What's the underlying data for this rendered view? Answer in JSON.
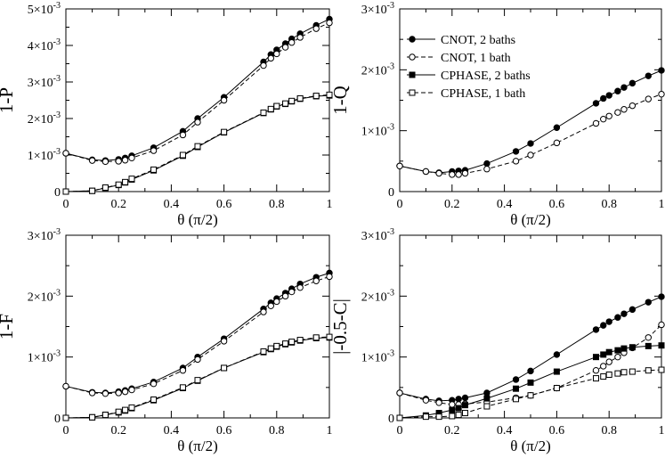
{
  "chart_data": [
    {
      "id": "P",
      "type": "line",
      "ylabel": "1-P",
      "xlabel": "θ (π/2)",
      "xlim": [
        0,
        1
      ],
      "ylim": [
        0,
        0.005
      ],
      "xticks": [
        "0",
        "0.2",
        "0.4",
        "0.6",
        "0.8",
        "1"
      ],
      "yticks": [
        {
          "mant": "0",
          "exp": ""
        },
        {
          "mant": "1×10",
          "exp": "-3"
        },
        {
          "mant": "2×10",
          "exp": "-3"
        },
        {
          "mant": "3×10",
          "exp": "-3"
        },
        {
          "mant": "4×10",
          "exp": "-3"
        },
        {
          "mant": "5×10",
          "exp": "-3"
        }
      ],
      "x": [
        0,
        0.1,
        0.15,
        0.2,
        0.225,
        0.25,
        0.333,
        0.444,
        0.5,
        0.6,
        0.75,
        0.778,
        0.8,
        0.833,
        0.857,
        0.889,
        0.95,
        1
      ],
      "series": [
        {
          "name": "CNOT, 2 baths",
          "values": [
            0.00105,
            0.00087,
            0.00085,
            0.00088,
            0.00092,
            0.00098,
            0.0012,
            0.00165,
            0.002,
            0.00258,
            0.00355,
            0.00375,
            0.00388,
            0.00405,
            0.00418,
            0.00432,
            0.00455,
            0.00472
          ]
        },
        {
          "name": "CNOT, 1 bath",
          "values": [
            0.00105,
            0.00085,
            0.00082,
            0.00083,
            0.00086,
            0.00092,
            0.00112,
            0.00155,
            0.0019,
            0.0025,
            0.00345,
            0.00365,
            0.00377,
            0.00395,
            0.00408,
            0.00422,
            0.00446,
            0.00462
          ]
        },
        {
          "name": "CPHASE, 2 baths",
          "values": [
            0,
            2e-05,
            0.0001,
            0.00018,
            0.00025,
            0.00033,
            0.00058,
            0.00098,
            0.00122,
            0.00162,
            0.00215,
            0.00225,
            0.00233,
            0.0024,
            0.00247,
            0.00254,
            0.00261,
            0.00263
          ]
        },
        {
          "name": "CPHASE, 1 bath",
          "values": [
            0,
            2e-05,
            0.00011,
            0.00019,
            0.00026,
            0.00035,
            0.0006,
            0.001,
            0.00124,
            0.00163,
            0.00216,
            0.00226,
            0.00234,
            0.00241,
            0.00248,
            0.00255,
            0.00262,
            0.00265
          ]
        }
      ]
    },
    {
      "id": "Q",
      "type": "line",
      "ylabel": "1-Q",
      "xlabel": "θ (π/2)",
      "xlim": [
        0,
        1
      ],
      "ylim": [
        0,
        0.003
      ],
      "xticks": [
        "0",
        "0.2",
        "0.4",
        "0.6",
        "0.8",
        "1"
      ],
      "yticks": [
        {
          "mant": "0",
          "exp": ""
        },
        {
          "mant": "1×10",
          "exp": "-3"
        },
        {
          "mant": "2×10",
          "exp": "-3"
        },
        {
          "mant": "3×10",
          "exp": "-3"
        }
      ],
      "x": [
        0,
        0.1,
        0.15,
        0.2,
        0.225,
        0.25,
        0.333,
        0.444,
        0.5,
        0.6,
        0.75,
        0.778,
        0.8,
        0.833,
        0.857,
        0.889,
        0.95,
        1
      ],
      "legend": {
        "placement": "top-right",
        "entries": [
          "CNOT, 2 baths",
          "CNOT, 1 bath",
          "CPHASE, 2 baths",
          "CPHASE, 1 bath"
        ]
      },
      "series": [
        {
          "name": "CNOT, 2 baths",
          "values": [
            0.00042,
            0.00033,
            0.00031,
            0.00033,
            0.00034,
            0.00035,
            0.00046,
            0.00066,
            0.00079,
            0.00105,
            0.00145,
            0.00153,
            0.00158,
            0.00165,
            0.00171,
            0.00178,
            0.0019,
            0.00199
          ]
        },
        {
          "name": "CNOT, 1 bath",
          "values": [
            0.00042,
            0.00033,
            0.0003,
            0.00028,
            0.00028,
            0.0003,
            0.00037,
            0.0005,
            0.0006,
            0.0008,
            0.00112,
            0.00119,
            0.00124,
            0.0013,
            0.00135,
            0.00141,
            0.00152,
            0.0016
          ]
        }
      ]
    },
    {
      "id": "F",
      "type": "line",
      "ylabel": "1-F",
      "xlabel": "θ (π/2)",
      "xlim": [
        0,
        1
      ],
      "ylim": [
        0,
        0.003
      ],
      "xticks": [
        "0",
        "0.2",
        "0.4",
        "0.6",
        "0.8",
        "1"
      ],
      "yticks": [
        {
          "mant": "0",
          "exp": ""
        },
        {
          "mant": "1×10",
          "exp": "-3"
        },
        {
          "mant": "2×10",
          "exp": "-3"
        },
        {
          "mant": "3×10",
          "exp": "-3"
        }
      ],
      "x": [
        0,
        0.1,
        0.15,
        0.2,
        0.225,
        0.25,
        0.333,
        0.444,
        0.5,
        0.6,
        0.75,
        0.778,
        0.8,
        0.833,
        0.857,
        0.889,
        0.95,
        1
      ],
      "series": [
        {
          "name": "CNOT, 2 baths",
          "values": [
            0.00052,
            0.00042,
            0.00041,
            0.00043,
            0.00045,
            0.00048,
            0.00059,
            0.00082,
            0.001,
            0.0013,
            0.00179,
            0.00189,
            0.00196,
            0.00205,
            0.00212,
            0.0022,
            0.00231,
            0.00238
          ]
        },
        {
          "name": "CNOT, 1 bath",
          "values": [
            0.00052,
            0.00041,
            0.0004,
            0.00041,
            0.00043,
            0.00046,
            0.00056,
            0.00078,
            0.00096,
            0.00126,
            0.00174,
            0.00184,
            0.00191,
            0.002,
            0.00207,
            0.00214,
            0.00225,
            0.00232
          ]
        },
        {
          "name": "CPHASE, 2 baths",
          "values": [
            0,
            1e-05,
            5e-05,
            9e-05,
            0.00012,
            0.00016,
            0.00029,
            0.00049,
            0.00061,
            0.00082,
            0.00108,
            0.00113,
            0.00117,
            0.00121,
            0.00124,
            0.00127,
            0.00131,
            0.00132
          ]
        },
        {
          "name": "CPHASE, 1 bath",
          "values": [
            0,
            1e-05,
            5e-05,
            0.0001,
            0.00013,
            0.00017,
            0.0003,
            0.0005,
            0.00062,
            0.00082,
            0.00109,
            0.00114,
            0.00118,
            0.00122,
            0.00125,
            0.00128,
            0.00132,
            0.00133
          ]
        }
      ]
    },
    {
      "id": "C",
      "type": "line",
      "ylabel": "|-0.5-C|",
      "xlabel": "θ (π/2)",
      "xlim": [
        0,
        1
      ],
      "ylim": [
        0,
        0.003
      ],
      "xticks": [
        "0",
        "0.2",
        "0.4",
        "0.6",
        "0.8",
        "1"
      ],
      "yticks": [
        {
          "mant": "0",
          "exp": ""
        },
        {
          "mant": "1×10",
          "exp": "-3"
        },
        {
          "mant": "2×10",
          "exp": "-3"
        },
        {
          "mant": "3×10",
          "exp": "-3"
        }
      ],
      "x": [
        0,
        0.1,
        0.15,
        0.2,
        0.225,
        0.25,
        0.333,
        0.444,
        0.5,
        0.6,
        0.75,
        0.778,
        0.8,
        0.833,
        0.857,
        0.889,
        0.95,
        1
      ],
      "series": [
        {
          "name": "CNOT, 2 baths",
          "values": [
            0.00041,
            0.00031,
            0.00028,
            0.00029,
            0.00031,
            0.00033,
            0.00041,
            0.00063,
            0.00077,
            0.00104,
            0.00145,
            0.00152,
            0.00158,
            0.00165,
            0.00171,
            0.00178,
            0.0019,
            0.00199
          ]
        },
        {
          "name": "CNOT, 1 bath",
          "values": [
            0.00041,
            0.00029,
            0.00025,
            0.00022,
            0.00022,
            0.00023,
            0.00026,
            0.00033,
            0.00037,
            0.00049,
            0.00078,
            0.00085,
            0.00092,
            0.001,
            0.00107,
            0.00115,
            0.00132,
            0.00153
          ]
        },
        {
          "name": "CPHASE, 2 baths",
          "values": [
            0,
            4e-05,
            8e-05,
            0.00013,
            0.00016,
            0.00021,
            0.00032,
            0.00048,
            0.00058,
            0.00076,
            0.001,
            0.00104,
            0.00108,
            0.00111,
            0.00114,
            0.00116,
            0.00118,
            0.00119
          ]
        },
        {
          "name": "CPHASE, 1 bath",
          "values": [
            0,
            2e-05,
            2e-05,
            3e-05,
            5e-05,
            8e-05,
            0.00019,
            0.00031,
            0.00037,
            0.00049,
            0.00065,
            0.00068,
            0.00071,
            0.00073,
            0.00075,
            0.00076,
            0.00078,
            0.00079
          ]
        }
      ]
    }
  ]
}
